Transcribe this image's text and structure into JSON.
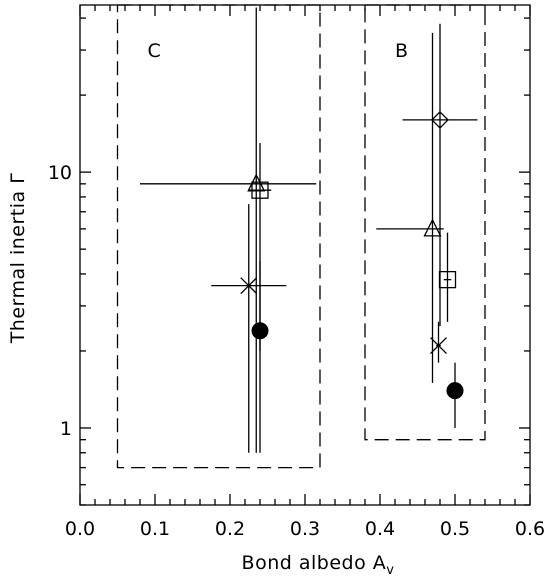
{
  "chart_data": {
    "type": "scatter",
    "title": "",
    "xlabel": "Bond albedo A",
    "xlabel_subscript": "v",
    "ylabel": "Thermal inertia Γ",
    "xlim": [
      0.0,
      0.6
    ],
    "ylim": [
      0.5,
      45
    ],
    "yscale": "log",
    "grid": false,
    "xticks": [
      {
        "value": 0.0,
        "label": "0.0"
      },
      {
        "value": 0.1,
        "label": "0.1"
      },
      {
        "value": 0.2,
        "label": "0.2"
      },
      {
        "value": 0.3,
        "label": "0.3"
      },
      {
        "value": 0.4,
        "label": "0.4"
      },
      {
        "value": 0.5,
        "label": "0.5"
      },
      {
        "value": 0.6,
        "label": "0.6"
      }
    ],
    "yticks": [
      {
        "value": 1,
        "label": "1"
      },
      {
        "value": 10,
        "label": "10"
      }
    ],
    "regions": [
      {
        "label": "C",
        "x0": 0.05,
        "x1": 0.32,
        "y0": 0.7,
        "y1": 45
      },
      {
        "label": "B",
        "x0": 0.38,
        "x1": 0.54,
        "y0": 0.9,
        "y1": 45
      }
    ],
    "points": [
      {
        "marker": "triangle",
        "x": 0.235,
        "y": 9.0,
        "xerr": [
          0.08,
          0.315
        ],
        "yerr": [
          0.8,
          44
        ]
      },
      {
        "marker": "square",
        "x": 0.24,
        "y": 8.5,
        "xerr": [
          0.225,
          0.255
        ],
        "yerr": [
          2.0,
          13
        ]
      },
      {
        "marker": "cross",
        "x": 0.225,
        "y": 3.6,
        "xerr": [
          0.175,
          0.275
        ],
        "yerr": [
          0.8,
          7.5
        ]
      },
      {
        "marker": "filled-circle",
        "x": 0.24,
        "y": 2.4,
        "xerr": [
          0.235,
          0.245
        ],
        "yerr": [
          0.8,
          4.5
        ]
      },
      {
        "marker": "diamond",
        "x": 0.48,
        "y": 16,
        "xerr": [
          0.43,
          0.53
        ],
        "yerr": [
          2.5,
          38
        ]
      },
      {
        "marker": "triangle",
        "x": 0.47,
        "y": 6.0,
        "xerr": [
          0.395,
          0.485
        ],
        "yerr": [
          1.5,
          35
        ]
      },
      {
        "marker": "square",
        "x": 0.49,
        "y": 3.8,
        "xerr": [
          0.485,
          0.495
        ],
        "yerr": [
          2.6,
          5.8
        ]
      },
      {
        "marker": "cross",
        "x": 0.478,
        "y": 2.1,
        "xerr": [
          0.475,
          0.481
        ],
        "yerr": [
          1.8,
          2.6
        ]
      },
      {
        "marker": "filled-circle",
        "x": 0.5,
        "y": 1.4,
        "xerr": [
          0.5,
          0.5
        ],
        "yerr": [
          1.0,
          1.8
        ]
      }
    ]
  }
}
